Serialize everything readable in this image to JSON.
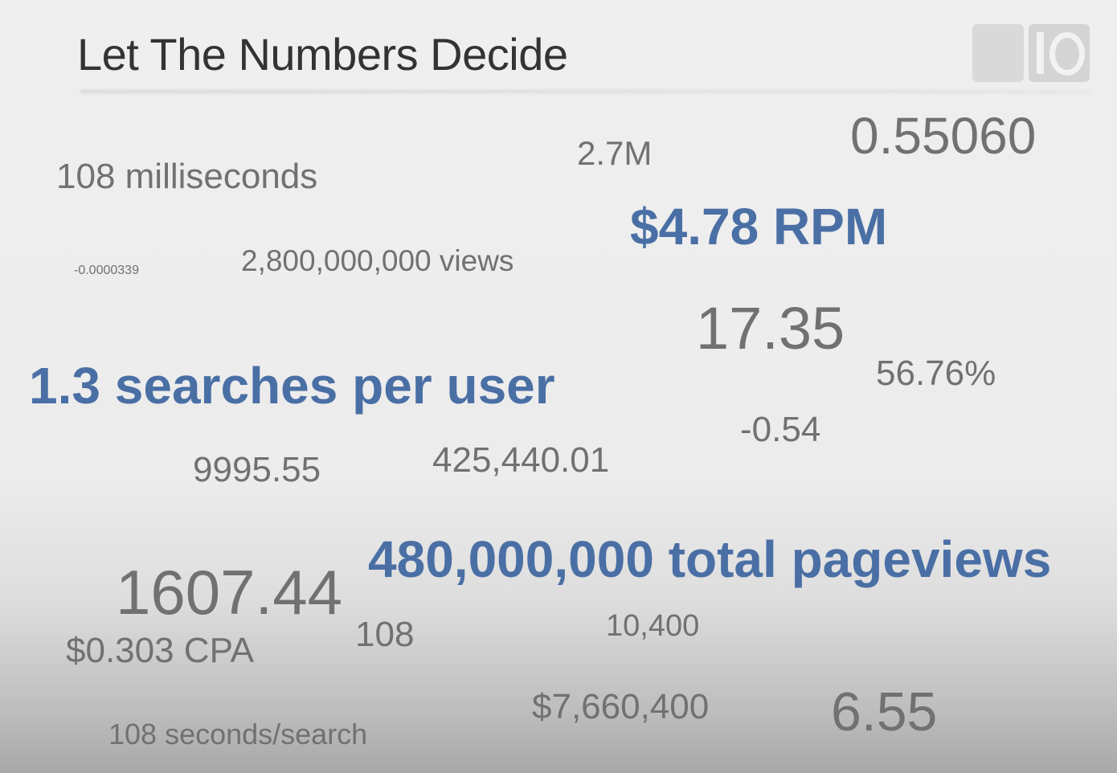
{
  "slide": {
    "title": "Let The Numbers Decide",
    "logo": "google-io-logo",
    "colors": {
      "title": "#333333",
      "gray_text": "#717171",
      "blue_text": "#4a6fa5"
    },
    "numbers": {
      "milliseconds": "108 milliseconds",
      "two_point_seven_m": "2.7M",
      "ratio": "0.55060",
      "rpm": "$4.78 RPM",
      "tiny": "-0.0000339",
      "views": "2,800,000,000 views",
      "seventeen": "17.35",
      "searches_per_user": "1.3 searches per user",
      "percent": "56.76%",
      "negative": "-0.54",
      "nine_nine": "9995.55",
      "four_two_five": "425,440.01",
      "pageviews": "480,000,000 total pageviews",
      "sixteen_oh_seven": "1607.44",
      "cpa": "$0.303 CPA",
      "one_oh_eight": "108",
      "ten_four": "10,400",
      "dollars": "$7,660,400",
      "six_fifty_five": "6.55",
      "seconds_per_search": "108 seconds/search"
    }
  }
}
